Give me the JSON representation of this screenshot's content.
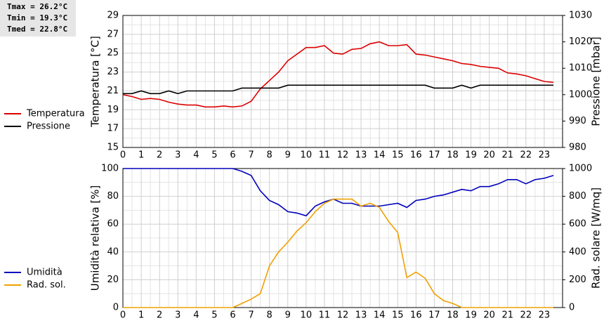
{
  "summary": [
    "Tmax = 26.2°C",
    "Tmin = 19.3°C",
    "Tmed = 22.8°C"
  ],
  "chart_data": [
    {
      "type": "line",
      "ylabel": "Temperatura [°C]",
      "y2label": "Pressione [mbar]",
      "x": [
        0,
        0.5,
        1,
        1.5,
        2,
        2.5,
        3,
        3.5,
        4,
        4.5,
        5,
        5.5,
        6,
        6.5,
        7,
        7.5,
        8,
        8.5,
        9,
        9.5,
        10,
        10.5,
        11,
        11.5,
        12,
        12.5,
        13,
        13.5,
        14,
        14.5,
        15,
        15.5,
        16,
        16.5,
        17,
        17.5,
        18,
        18.5,
        19,
        19.5,
        20,
        20.5,
        21,
        21.5,
        22,
        22.5,
        23,
        23.5
      ],
      "xlim": [
        0,
        24
      ],
      "xticks": [
        0,
        1,
        2,
        3,
        4,
        5,
        6,
        7,
        8,
        9,
        10,
        11,
        12,
        13,
        14,
        15,
        16,
        17,
        18,
        19,
        20,
        21,
        22,
        23
      ],
      "ylim": [
        15,
        29
      ],
      "yticks": [
        15,
        17,
        19,
        21,
        23,
        25,
        27,
        29
      ],
      "y2lim": [
        980,
        1030
      ],
      "y2ticks": [
        980,
        990,
        1000,
        1010,
        1020,
        1030
      ],
      "grid": true,
      "series": [
        {
          "name": "Temperatura",
          "color": "#dd0000",
          "values": [
            20.6,
            20.4,
            20.1,
            20.2,
            20.1,
            19.8,
            19.6,
            19.5,
            19.5,
            19.3,
            19.3,
            19.4,
            19.3,
            19.4,
            19.9,
            21.2,
            22.1,
            23.0,
            24.2,
            24.9,
            25.6,
            25.6,
            25.8,
            25.0,
            24.9,
            25.4,
            25.5,
            26.0,
            26.2,
            25.8,
            25.8,
            25.9,
            24.9,
            24.8,
            24.6,
            24.4,
            24.2,
            23.9,
            23.8,
            23.6,
            23.5,
            23.4,
            22.9,
            22.8,
            22.6,
            22.3,
            22.0,
            21.9
          ]
        },
        {
          "name": "Pressione",
          "color": "#000000",
          "axis": "y2",
          "values": [
            1000.4,
            1000.4,
            1001.4,
            1000.4,
            1000.4,
            1001.4,
            1000.4,
            1001.4,
            1001.4,
            1001.4,
            1001.4,
            1001.4,
            1001.4,
            1002.5,
            1002.5,
            1002.5,
            1002.5,
            1002.5,
            1003.6,
            1003.6,
            1003.6,
            1003.6,
            1003.6,
            1003.6,
            1003.6,
            1003.6,
            1003.6,
            1003.6,
            1003.6,
            1003.6,
            1003.6,
            1003.6,
            1003.6,
            1003.6,
            1002.5,
            1002.5,
            1002.5,
            1003.6,
            1002.5,
            1003.6,
            1003.6,
            1003.6,
            1003.6,
            1003.6,
            1003.6,
            1003.6,
            1003.6,
            1003.6
          ]
        }
      ]
    },
    {
      "type": "line",
      "ylabel": "Umidità relativa [%]",
      "y2label": "Rad. solare [W/mq]",
      "x": [
        0,
        0.5,
        1,
        1.5,
        2,
        2.5,
        3,
        3.5,
        4,
        4.5,
        5,
        5.5,
        6,
        6.5,
        7,
        7.5,
        8,
        8.5,
        9,
        9.5,
        10,
        10.5,
        11,
        11.5,
        12,
        12.5,
        13,
        13.5,
        14,
        14.5,
        15,
        15.5,
        16,
        16.5,
        17,
        17.5,
        18,
        18.5,
        19,
        19.5,
        20,
        20.5,
        21,
        21.5,
        22,
        22.5,
        23,
        23.5
      ],
      "xlim": [
        0,
        24
      ],
      "xticks": [
        0,
        1,
        2,
        3,
        4,
        5,
        6,
        7,
        8,
        9,
        10,
        11,
        12,
        13,
        14,
        15,
        16,
        17,
        18,
        19,
        20,
        21,
        22,
        23
      ],
      "ylim": [
        0,
        100
      ],
      "yticks": [
        0,
        20,
        40,
        60,
        80,
        100
      ],
      "y2lim": [
        0,
        1000
      ],
      "y2ticks": [
        0,
        200,
        400,
        600,
        800,
        1000
      ],
      "grid": true,
      "series": [
        {
          "name": "Umidità",
          "color": "#0000bb",
          "values": [
            100,
            100,
            100,
            100,
            100,
            100,
            100,
            100,
            100,
            100,
            100,
            100,
            100,
            98,
            95,
            84,
            77,
            74,
            69,
            68,
            66,
            73,
            76,
            78,
            75,
            75,
            73,
            73,
            73,
            74,
            75,
            72,
            77,
            78,
            80,
            81,
            83,
            85,
            84,
            87,
            87,
            89,
            92,
            92,
            89,
            92,
            93,
            95
          ]
        },
        {
          "name": "Rad. sol.",
          "color": "#f0a000",
          "axis": "y2",
          "values": [
            0,
            0,
            0,
            0,
            0,
            0,
            0,
            0,
            0,
            0,
            0,
            0,
            0,
            30,
            60,
            100,
            300,
            400,
            470,
            550,
            610,
            690,
            750,
            780,
            780,
            780,
            730,
            750,
            720,
            620,
            540,
            215,
            255,
            210,
            100,
            50,
            30,
            0,
            0,
            0,
            0,
            0,
            0,
            0,
            0,
            0,
            0,
            0
          ]
        }
      ]
    }
  ]
}
